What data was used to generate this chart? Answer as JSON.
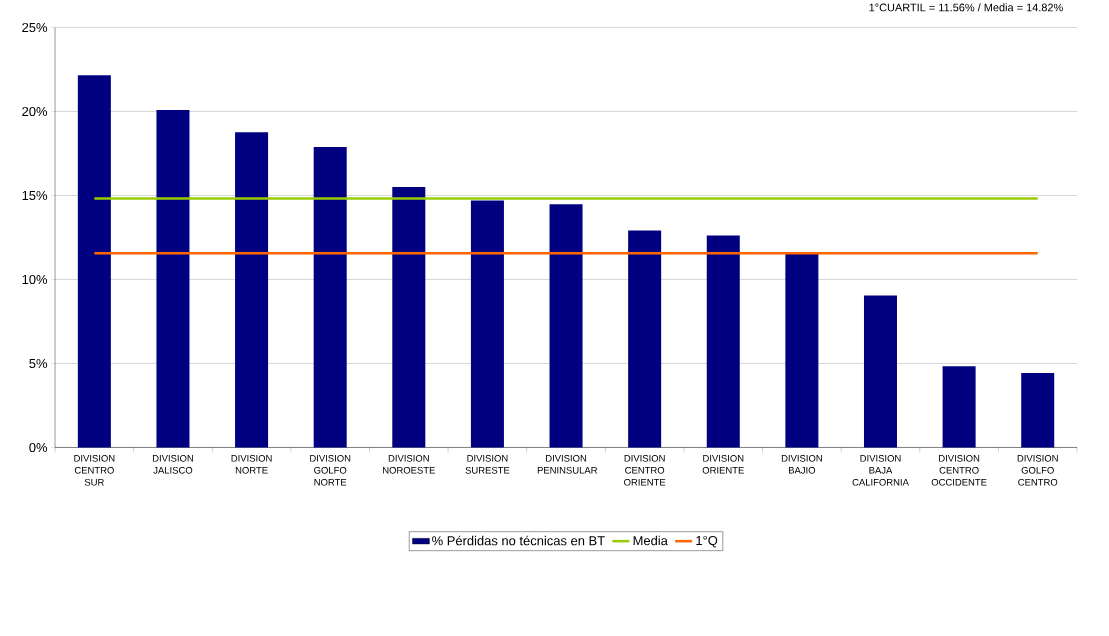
{
  "chart_data": {
    "type": "bar",
    "annotations": [
      "1°CUARTIL = 11.56% / Media = 14.82%"
    ],
    "categories": [
      "DIVISION CENTRO SUR",
      "DIVISION JALISCO",
      "DIVISION NORTE",
      "DIVISION GOLFO NORTE",
      "DIVISION NOROESTE",
      "DIVISION SURESTE",
      "DIVISION PENINSULAR",
      "DIVISION CENTRO ORIENTE",
      "DIVISION ORIENTE",
      "DIVISION BAJIO",
      "DIVISION BAJA CALIFORNIA",
      "DIVISION CENTRO OCCIDENTE",
      "DIVISION GOLFO CENTRO"
    ],
    "series": [
      {
        "name": "% Pérdidas no técnicas en BT",
        "color": "#000080",
        "values": [
          22.15,
          20.09,
          18.77,
          17.88,
          15.5,
          14.7,
          14.48,
          12.92,
          12.62,
          11.54,
          9.05,
          4.84,
          4.43
        ]
      },
      {
        "name": "Media",
        "type": "line",
        "color": "#99cc00",
        "values": [
          14.82,
          14.82,
          14.82,
          14.82,
          14.82,
          14.82,
          14.82,
          14.82,
          14.82,
          14.82,
          14.82,
          14.82,
          14.82
        ]
      },
      {
        "name": "1°Q",
        "type": "line",
        "color": "#ff6600",
        "values": [
          11.56,
          11.56,
          11.56,
          11.56,
          11.56,
          11.56,
          11.56,
          11.56,
          11.56,
          11.56,
          11.56,
          11.56,
          11.56
        ]
      }
    ],
    "ylim": [
      0,
      25
    ],
    "yticks": [
      {
        "value": 0,
        "label": "0%"
      },
      {
        "value": 5,
        "label": "5%"
      },
      {
        "value": 10,
        "label": "10%"
      },
      {
        "value": 15,
        "label": "15%"
      },
      {
        "value": 20,
        "label": "20%"
      },
      {
        "value": 25,
        "label": "25%"
      }
    ],
    "grid": "y",
    "legend": "bottom"
  }
}
